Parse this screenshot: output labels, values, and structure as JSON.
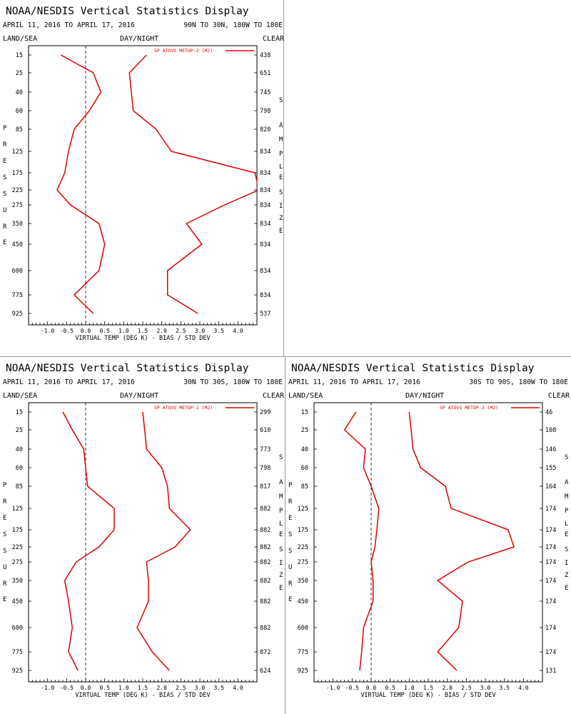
{
  "panel_common": {
    "title": "NOAA/NESDIS Vertical Statistics Display",
    "date_range": "APRIL 11, 2016 TO APRIL 17, 2016",
    "land_sea": "LAND/SEA",
    "day_night": "DAY/NIGHT",
    "clear": "CLEAR",
    "legend_label": "SP ATOVS METOP-2 (M2)",
    "xlabel": "VIRTUAL TEMP (DEG K) - BIAS / STD DEV",
    "ylabel_letters": [
      "P",
      "R",
      "E",
      "S",
      "S",
      "U",
      "R",
      "E"
    ],
    "sample_letters": [
      "S",
      "A",
      "M",
      "P",
      "L",
      "E"
    ],
    "size_letters": [
      "S",
      "I",
      "Z",
      "E"
    ],
    "pressure_levels": [
      "15",
      "25",
      "40",
      "60",
      "85",
      "125",
      "175",
      "225",
      "275",
      "350",
      "450",
      "600",
      "775",
      "925"
    ],
    "x_ticks": [
      "-1.0",
      "-0.5",
      "0.0",
      "0.5",
      "1.0",
      "1.5",
      "2.0",
      "2.5",
      "3.0",
      "3.5",
      "4.0"
    ],
    "xlim": [
      -1.5,
      4.5
    ],
    "line_color": "#dd0000"
  },
  "chart_data": [
    {
      "type": "line",
      "region": "90N TO 30N, 180W TO 180E",
      "pressure_levels": [
        "15",
        "25",
        "40",
        "60",
        "85",
        "125",
        "175",
        "225",
        "275",
        "350",
        "450",
        "600",
        "775",
        "925"
      ],
      "series": [
        {
          "values": [
            -0.65,
            0.2,
            0.4,
            0.1,
            -0.3,
            -0.45,
            -0.55,
            -0.75,
            -0.4,
            0.35,
            0.5,
            0.35,
            -0.3,
            0.2
          ]
        },
        {
          "values": [
            1.6,
            1.15,
            1.2,
            1.25,
            1.85,
            2.25,
            4.45,
            4.55,
            3.65,
            2.65,
            3.05,
            2.15,
            2.15,
            2.95
          ]
        }
      ],
      "sample_size": [
        "438",
        "651",
        "745",
        "798",
        "820",
        "834",
        "834",
        "834",
        "834",
        "834",
        "834",
        "834",
        "834",
        "537"
      ]
    },
    {
      "type": "line",
      "region": "30N TO 30S, 180W TO 180E",
      "pressure_levels": [
        "15",
        "25",
        "40",
        "60",
        "85",
        "125",
        "175",
        "225",
        "275",
        "350",
        "450",
        "600",
        "775",
        "925"
      ],
      "series": [
        {
          "values": [
            -0.6,
            -0.35,
            -0.05,
            0.0,
            0.05,
            0.75,
            0.75,
            0.35,
            -0.25,
            -0.55,
            -0.45,
            -0.35,
            -0.45,
            -0.2
          ]
        },
        {
          "values": [
            1.5,
            1.55,
            1.6,
            2.0,
            2.15,
            2.2,
            2.75,
            2.35,
            1.6,
            1.65,
            1.65,
            1.35,
            1.75,
            2.2
          ]
        }
      ],
      "sample_size": [
        "299",
        "610",
        "773",
        "798",
        "817",
        "882",
        "882",
        "882",
        "882",
        "882",
        "882",
        "882",
        "872",
        "624"
      ]
    },
    {
      "type": "line",
      "region": "30S TO 90S, 180W TO 180E",
      "pressure_levels": [
        "15",
        "25",
        "40",
        "60",
        "85",
        "125",
        "175",
        "225",
        "275",
        "350",
        "450",
        "600",
        "775",
        "925"
      ],
      "series": [
        {
          "values": [
            -0.4,
            -0.7,
            -0.15,
            -0.2,
            0.0,
            0.2,
            0.15,
            0.1,
            0.0,
            0.05,
            0.05,
            -0.2,
            -0.25,
            -0.3
          ]
        },
        {
          "values": [
            1.0,
            1.05,
            1.1,
            1.3,
            1.95,
            2.1,
            3.6,
            3.75,
            2.55,
            1.75,
            2.4,
            2.3,
            1.75,
            2.25
          ]
        }
      ],
      "sample_size": [
        "46",
        "108",
        "146",
        "155",
        "164",
        "174",
        "174",
        "174",
        "174",
        "174",
        "174",
        "174",
        "174",
        "131"
      ]
    }
  ]
}
